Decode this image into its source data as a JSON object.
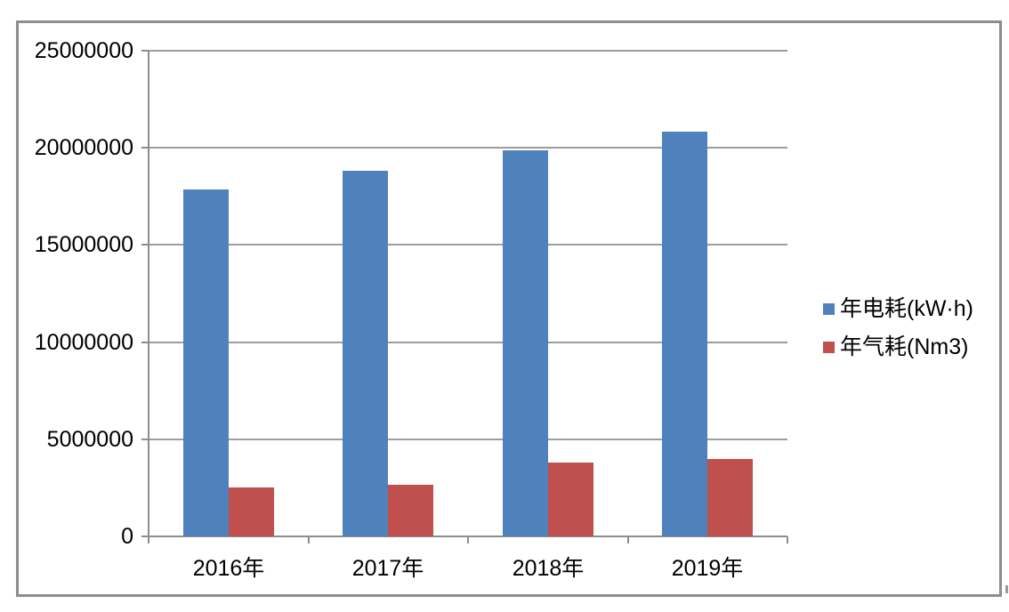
{
  "chart_data": {
    "type": "bar",
    "title": "",
    "xlabel": "",
    "ylabel": "",
    "categories": [
      "2016年",
      "2017年",
      "2018年",
      "2019年"
    ],
    "series": [
      {
        "name": "年电耗(kW·h)",
        "color": "#4F81BD",
        "values": [
          17850000,
          18800000,
          19850000,
          20850000
        ]
      },
      {
        "name": "年气耗(Nm3)",
        "color": "#C0504D",
        "values": [
          2500000,
          2650000,
          3800000,
          4000000
        ]
      }
    ],
    "ylim": [
      0,
      25000000
    ],
    "y_ticks": [
      0,
      5000000,
      10000000,
      15000000,
      20000000,
      25000000
    ],
    "y_tick_labels": [
      "0",
      "5000000",
      "10000000",
      "15000000",
      "20000000",
      "25000000"
    ],
    "grid": true,
    "legend_position": "right-middle",
    "colors": {
      "gridline": "#9d9d9d",
      "axis": "#8d8d8d",
      "frame_border": "#8d8d8d",
      "text": "#000000",
      "background": "#ffffff"
    }
  }
}
